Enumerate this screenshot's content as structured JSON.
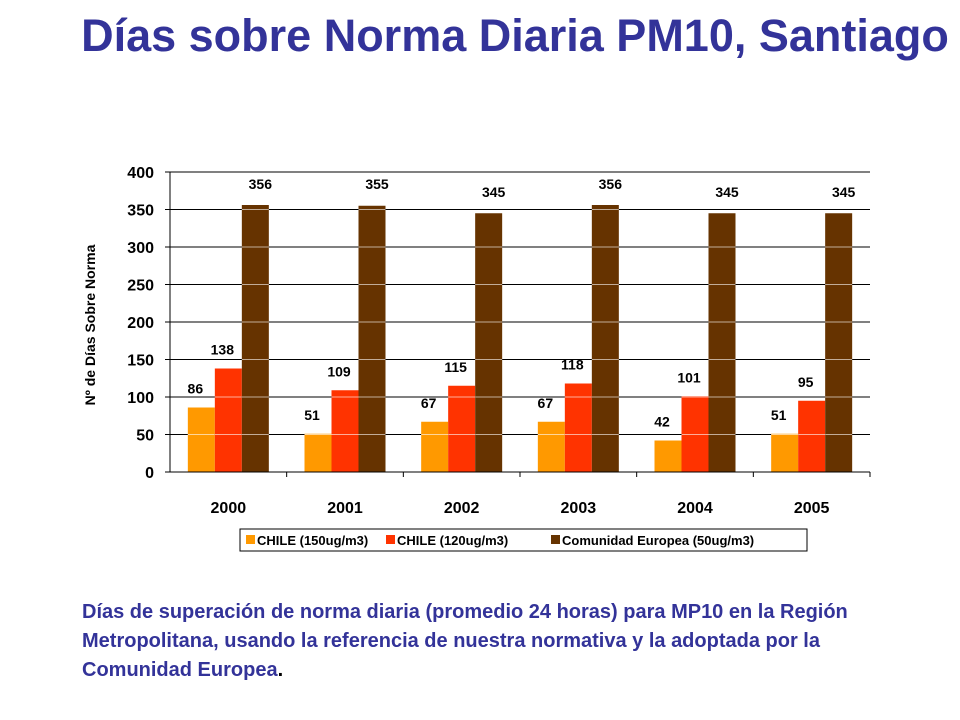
{
  "title": "Días sobre Norma Diaria PM10, Santiago",
  "caption": "Días de superación de norma diaria (promedio 24 horas) para MP10 en la Región Metropolitana, usando la referencia de nuestra normativa y la adoptada por la Comunidad Europea",
  "caption_end": ".",
  "colors": {
    "title": "#333399",
    "series": [
      "#FF9900",
      "#FF3300",
      "#663300"
    ]
  },
  "chart_data": {
    "type": "bar",
    "title": "Días sobre Norma Diaria PM10, Santiago",
    "xlabel": "",
    "ylabel": "Nº de Días Sobre Norma",
    "ylim": [
      0,
      400
    ],
    "yticks": [
      0,
      50,
      100,
      150,
      200,
      250,
      300,
      350,
      400
    ],
    "grid": true,
    "legend": "bottom",
    "categories": [
      "2000",
      "2001",
      "2002",
      "2003",
      "2004",
      "2005"
    ],
    "series": [
      {
        "name": "CHILE (150ug/m3)",
        "values": [
          86,
          51,
          67,
          67,
          42,
          51
        ]
      },
      {
        "name": "CHILE (120ug/m3)",
        "values": [
          138,
          109,
          115,
          118,
          101,
          95
        ]
      },
      {
        "name": "Comunidad Europea (50ug/m3)",
        "values": [
          356,
          355,
          345,
          356,
          345,
          345
        ]
      }
    ]
  }
}
